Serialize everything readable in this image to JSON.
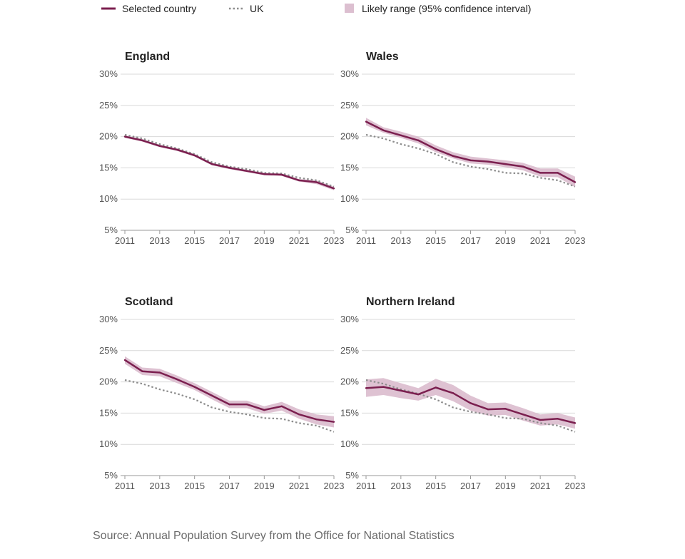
{
  "legend": {
    "selected": "Selected country",
    "uk": "UK",
    "range": "Likely range (95% confidence interval)"
  },
  "source": "Source: Annual Population Survey from the Office for National Statistics",
  "colors": {
    "selected": "#7b1f4f",
    "uk": "#8c8c8c",
    "range": "#dcbfd0"
  },
  "chart_data": [
    {
      "type": "line",
      "title": "England",
      "x": [
        2011,
        2012,
        2013,
        2014,
        2015,
        2016,
        2017,
        2018,
        2019,
        2020,
        2021,
        2022,
        2023
      ],
      "xticks": [
        2011,
        2013,
        2015,
        2017,
        2019,
        2021,
        2023
      ],
      "ylim": [
        5,
        30
      ],
      "yticks": [
        "5%",
        "10%",
        "15%",
        "20%",
        "25%",
        "30%"
      ],
      "series": [
        {
          "name": "Selected country",
          "values": [
            20.0,
            19.4,
            18.5,
            17.9,
            17.0,
            15.6,
            15.0,
            14.5,
            14.0,
            13.9,
            13.0,
            12.7,
            11.7
          ],
          "lower": [
            19.8,
            19.2,
            18.3,
            17.7,
            16.8,
            15.4,
            14.8,
            14.3,
            13.8,
            13.7,
            12.8,
            12.4,
            11.4
          ],
          "upper": [
            20.2,
            19.6,
            18.7,
            18.1,
            17.2,
            15.8,
            15.2,
            14.7,
            14.2,
            14.1,
            13.2,
            13.0,
            12.0
          ]
        },
        {
          "name": "UK",
          "values": [
            20.3,
            19.7,
            18.8,
            18.1,
            17.2,
            15.9,
            15.2,
            14.8,
            14.2,
            14.1,
            13.4,
            13.0,
            12.0
          ]
        }
      ]
    },
    {
      "type": "line",
      "title": "Wales",
      "x": [
        2011,
        2012,
        2013,
        2014,
        2015,
        2016,
        2017,
        2018,
        2019,
        2020,
        2021,
        2022,
        2023
      ],
      "xticks": [
        2011,
        2013,
        2015,
        2017,
        2019,
        2021,
        2023
      ],
      "ylim": [
        5,
        30
      ],
      "yticks": [
        "5%",
        "10%",
        "15%",
        "20%",
        "25%",
        "30%"
      ],
      "series": [
        {
          "name": "Selected country",
          "values": [
            22.4,
            21.0,
            20.2,
            19.4,
            18.0,
            16.9,
            16.2,
            16.0,
            15.6,
            15.2,
            14.2,
            14.2,
            12.7
          ],
          "lower": [
            21.8,
            20.6,
            19.8,
            18.9,
            17.5,
            16.5,
            15.7,
            15.5,
            15.1,
            14.6,
            13.6,
            13.5,
            11.9
          ],
          "upper": [
            23.0,
            21.5,
            20.8,
            20.0,
            18.6,
            17.5,
            16.8,
            16.5,
            16.2,
            15.8,
            14.9,
            14.9,
            13.6
          ]
        },
        {
          "name": "UK",
          "values": [
            20.3,
            19.7,
            18.8,
            18.1,
            17.2,
            15.9,
            15.2,
            14.8,
            14.2,
            14.1,
            13.4,
            13.0,
            12.0
          ]
        }
      ]
    },
    {
      "type": "line",
      "title": "Scotland",
      "x": [
        2011,
        2012,
        2013,
        2014,
        2015,
        2016,
        2017,
        2018,
        2019,
        2020,
        2021,
        2022,
        2023
      ],
      "xticks": [
        2011,
        2013,
        2015,
        2017,
        2019,
        2021,
        2023
      ],
      "ylim": [
        5,
        30
      ],
      "yticks": [
        "5%",
        "10%",
        "15%",
        "20%",
        "25%",
        "30%"
      ],
      "series": [
        {
          "name": "Selected country",
          "values": [
            23.5,
            21.7,
            21.5,
            20.4,
            19.2,
            17.8,
            16.4,
            16.4,
            15.5,
            16.1,
            14.8,
            14.0,
            13.6
          ],
          "lower": [
            22.9,
            21.1,
            20.9,
            19.8,
            18.7,
            17.2,
            15.8,
            15.8,
            14.9,
            15.4,
            14.1,
            13.2,
            12.7
          ],
          "upper": [
            24.1,
            22.3,
            22.1,
            21.0,
            19.8,
            18.4,
            17.0,
            17.0,
            16.1,
            16.8,
            15.6,
            14.8,
            14.5
          ]
        },
        {
          "name": "UK",
          "values": [
            20.3,
            19.7,
            18.8,
            18.1,
            17.2,
            15.9,
            15.2,
            14.8,
            14.2,
            14.1,
            13.4,
            13.0,
            12.0
          ]
        }
      ]
    },
    {
      "type": "line",
      "title": "Northern Ireland",
      "x": [
        2011,
        2012,
        2013,
        2014,
        2015,
        2016,
        2017,
        2018,
        2019,
        2020,
        2021,
        2022,
        2023
      ],
      "xticks": [
        2011,
        2013,
        2015,
        2017,
        2019,
        2021,
        2023
      ],
      "ylim": [
        5,
        30
      ],
      "yticks": [
        "5%",
        "10%",
        "15%",
        "20%",
        "25%",
        "30%"
      ],
      "series": [
        {
          "name": "Selected country",
          "values": [
            19.0,
            19.2,
            18.6,
            18.0,
            19.1,
            18.2,
            16.6,
            15.6,
            15.7,
            14.8,
            13.9,
            14.1,
            13.4
          ],
          "lower": [
            17.6,
            17.9,
            17.4,
            17.0,
            17.9,
            16.9,
            15.4,
            14.6,
            14.7,
            13.8,
            13.0,
            13.2,
            12.5
          ],
          "upper": [
            20.4,
            20.6,
            19.8,
            19.0,
            20.5,
            19.5,
            17.8,
            16.6,
            16.7,
            15.8,
            14.8,
            15.0,
            14.3
          ]
        },
        {
          "name": "UK",
          "values": [
            20.3,
            19.7,
            18.8,
            18.1,
            17.2,
            15.9,
            15.2,
            14.8,
            14.2,
            14.1,
            13.4,
            13.0,
            12.0
          ]
        }
      ]
    }
  ]
}
